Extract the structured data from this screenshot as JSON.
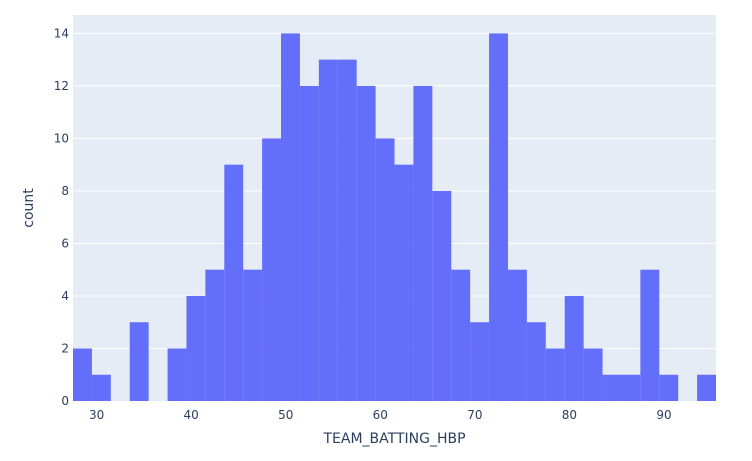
{
  "chart_data": {
    "type": "bar",
    "subtype": "histogram",
    "title": "",
    "xlabel": "TEAM_BATTING_HBP",
    "ylabel": "count",
    "bin_width": 2,
    "x_range": [
      27.5,
      95.5
    ],
    "xlim": [
      27.5,
      95.5
    ],
    "ylim": [
      0,
      14.7
    ],
    "x_ticks": [
      30,
      40,
      50,
      60,
      70,
      80,
      90
    ],
    "y_ticks": [
      0,
      2,
      4,
      6,
      8,
      10,
      12,
      14
    ],
    "grid": true,
    "bar_color": "#636efa",
    "background": "#e5ecf6",
    "bins": [
      {
        "x0": 27.5,
        "count": 2
      },
      {
        "x0": 29.5,
        "count": 1
      },
      {
        "x0": 31.5,
        "count": 0
      },
      {
        "x0": 33.5,
        "count": 3
      },
      {
        "x0": 35.5,
        "count": 0
      },
      {
        "x0": 37.5,
        "count": 2
      },
      {
        "x0": 39.5,
        "count": 4
      },
      {
        "x0": 41.5,
        "count": 5
      },
      {
        "x0": 43.5,
        "count": 9
      },
      {
        "x0": 45.5,
        "count": 5
      },
      {
        "x0": 47.5,
        "count": 10
      },
      {
        "x0": 49.5,
        "count": 14
      },
      {
        "x0": 51.5,
        "count": 12
      },
      {
        "x0": 53.5,
        "count": 13
      },
      {
        "x0": 55.5,
        "count": 13
      },
      {
        "x0": 57.5,
        "count": 12
      },
      {
        "x0": 59.5,
        "count": 10
      },
      {
        "x0": 61.5,
        "count": 9
      },
      {
        "x0": 63.5,
        "count": 12
      },
      {
        "x0": 65.5,
        "count": 8
      },
      {
        "x0": 67.5,
        "count": 5
      },
      {
        "x0": 69.5,
        "count": 3
      },
      {
        "x0": 71.5,
        "count": 14
      },
      {
        "x0": 73.5,
        "count": 5
      },
      {
        "x0": 75.5,
        "count": 3
      },
      {
        "x0": 77.5,
        "count": 2
      },
      {
        "x0": 79.5,
        "count": 4
      },
      {
        "x0": 81.5,
        "count": 2
      },
      {
        "x0": 83.5,
        "count": 1
      },
      {
        "x0": 85.5,
        "count": 1
      },
      {
        "x0": 87.5,
        "count": 5
      },
      {
        "x0": 89.5,
        "count": 1
      },
      {
        "x0": 91.5,
        "count": 0
      },
      {
        "x0": 93.5,
        "count": 1
      }
    ]
  }
}
